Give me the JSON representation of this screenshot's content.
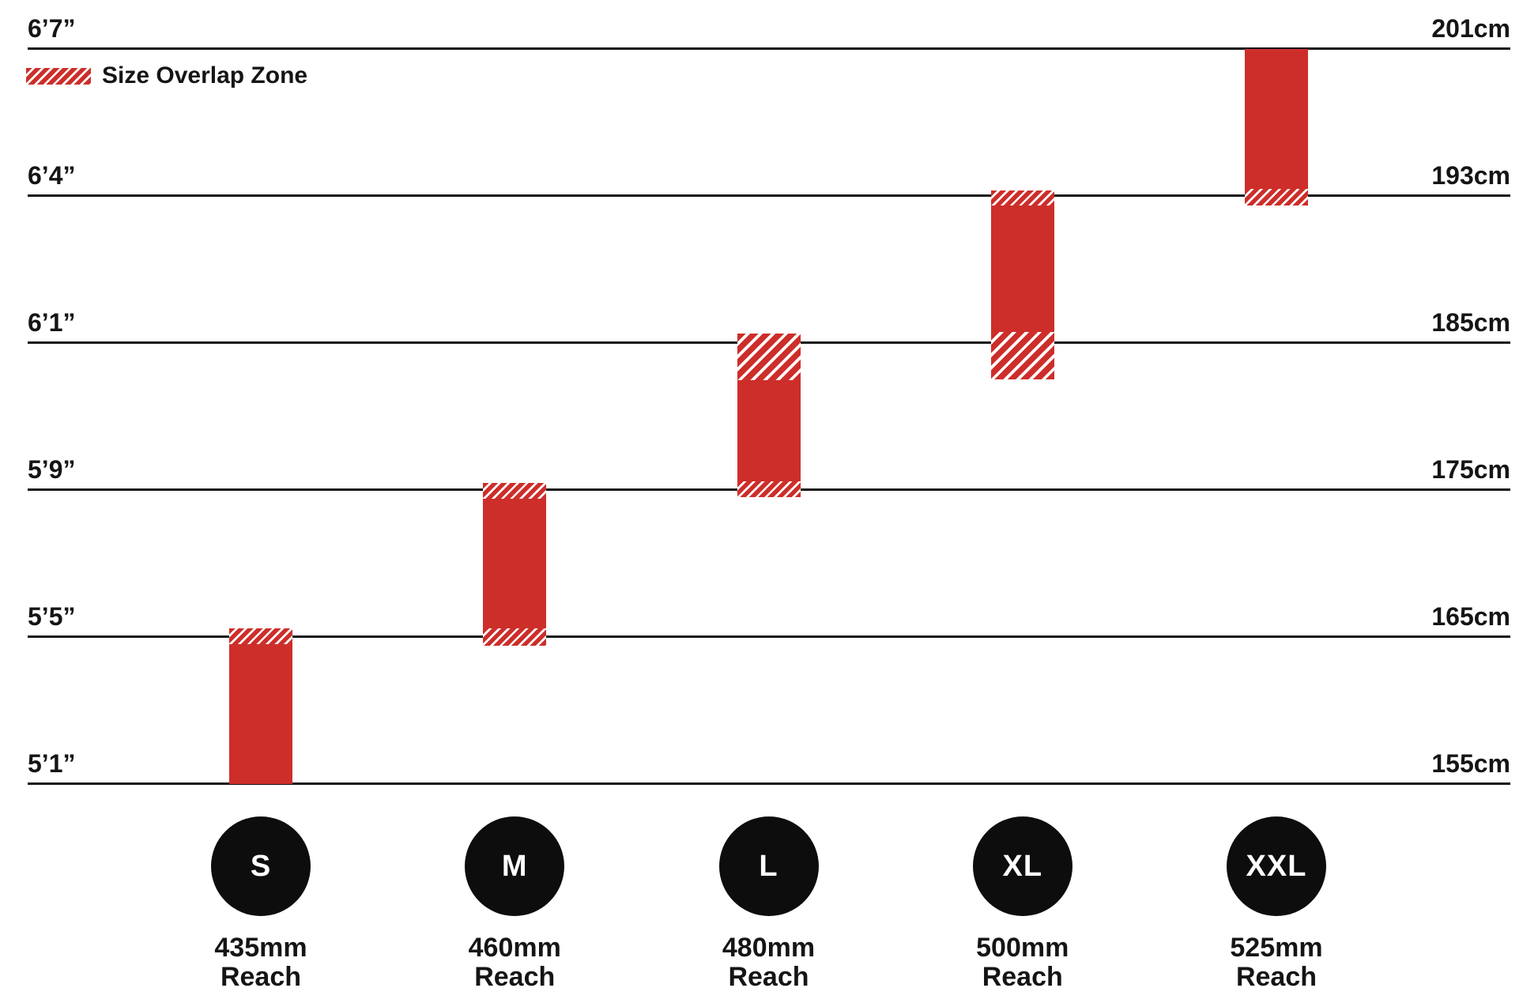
{
  "chart_data": {
    "type": "range-bar",
    "title": "",
    "legend_label": "Size Overlap Zone",
    "legend_position": "top-left",
    "grid": "horizontal-lines",
    "y_axis_left_unit": "feet-inches",
    "y_axis_right_unit": "cm",
    "axis_lines": [
      {
        "imperial": "6’7”",
        "metric_label": "201cm",
        "cm": 201
      },
      {
        "imperial": "6’4”",
        "metric_label": "193cm",
        "cm": 193
      },
      {
        "imperial": "6’1”",
        "metric_label": "185cm",
        "cm": 185
      },
      {
        "imperial": "5’9”",
        "metric_label": "175cm",
        "cm": 175
      },
      {
        "imperial": "5’5”",
        "metric_label": "165cm",
        "cm": 165
      },
      {
        "imperial": "5’1”",
        "metric_label": "155cm",
        "cm": 155
      }
    ],
    "reach_word": "Reach",
    "sizes": [
      {
        "label": "S",
        "reach": "435mm",
        "range_cm": [
          155.0,
          165.6
        ],
        "overlap_top_cm": [
          164.5,
          165.6
        ],
        "overlap_bottom_cm": null
      },
      {
        "label": "M",
        "reach": "460mm",
        "range_cm": [
          164.4,
          175.5
        ],
        "overlap_top_cm": [
          174.4,
          175.5
        ],
        "overlap_bottom_cm": [
          164.4,
          165.6
        ]
      },
      {
        "label": "L",
        "reach": "480mm",
        "range_cm": [
          174.5,
          185.5
        ],
        "overlap_top_cm": [
          182.5,
          185.5
        ],
        "overlap_bottom_cm": [
          174.5,
          175.6
        ]
      },
      {
        "label": "XL",
        "reach": "500mm",
        "range_cm": [
          182.5,
          193.3
        ],
        "overlap_top_cm": [
          192.5,
          193.3
        ],
        "overlap_bottom_cm": [
          182.5,
          185.6
        ]
      },
      {
        "label": "XXL",
        "reach": "525mm",
        "range_cm": [
          192.5,
          201.0
        ],
        "overlap_top_cm": null,
        "overlap_bottom_cm": [
          192.5,
          193.4
        ]
      }
    ],
    "colors": {
      "red": "#cd2e2a",
      "ink": "#151515",
      "circle": "#0d0d0d",
      "background": "#ffffff"
    }
  }
}
